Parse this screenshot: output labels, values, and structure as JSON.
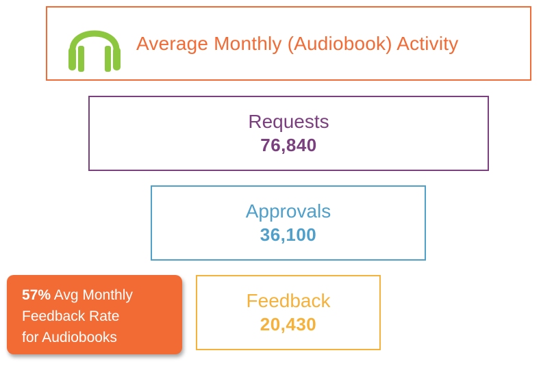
{
  "header": {
    "title": "Average Monthly (Audiobook) Activity",
    "icon": "headphones-icon",
    "color": "#f26b35",
    "icon_color": "#8dc63f"
  },
  "stages": [
    {
      "label": "Requests",
      "value": "76,840",
      "color": "#7b3f7f"
    },
    {
      "label": "Approvals",
      "value": "36,100",
      "color": "#4f9fcb"
    },
    {
      "label": "Feedback",
      "value": "20,430",
      "color": "#f5b13a"
    }
  ],
  "callout": {
    "percent": "57%",
    "line1": " Avg Monthly",
    "line2": "Feedback Rate",
    "line3": "for Audiobooks",
    "background": "#f26b35"
  }
}
